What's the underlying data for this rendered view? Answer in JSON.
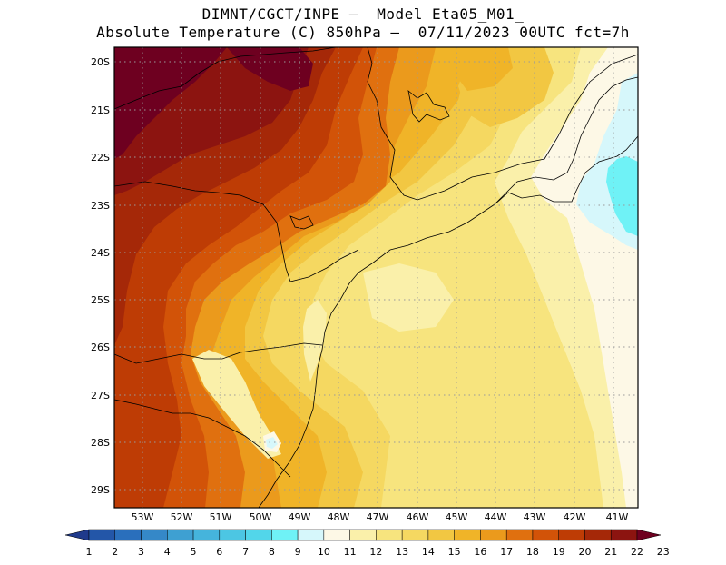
{
  "header": {
    "title_line1": "DIMNT/CGCT/INPE –  Model Eta05_M01_",
    "title_line2": "Absolute Temperature (C) 850hPa –  07/11/2023 00UTC fct=7h"
  },
  "map": {
    "lat_labels": [
      "20S",
      "21S",
      "22S",
      "23S",
      "24S",
      "25S",
      "26S",
      "27S",
      "28S",
      "29S"
    ],
    "lon_labels": [
      "53W",
      "52W",
      "51W",
      "50W",
      "49W",
      "48W",
      "47W",
      "46W",
      "45W",
      "44W",
      "43W",
      "42W",
      "41W"
    ],
    "colors": {
      "c23": "#6e0020",
      "c22": "#8c1410",
      "c21": "#a52808",
      "c20": "#be3c05",
      "c19": "#d25308",
      "c18": "#e0700f",
      "c17": "#eb9a1c",
      "c16": "#f0b428",
      "c15": "#f2c742",
      "c14": "#f5d861",
      "c13": "#f7e47e",
      "c12": "#faf0aa",
      "c11": "#fdf8e6",
      "c10": "#d6f7fb",
      "c9": "#6ff2f6",
      "c8": "#43e1ec",
      "c7": "#2bc6df"
    }
  },
  "colorbar": {
    "labels": [
      "1",
      "2",
      "3",
      "4",
      "5",
      "6",
      "7",
      "8",
      "9",
      "10",
      "11",
      "12",
      "13",
      "14",
      "15",
      "16",
      "17",
      "18",
      "19",
      "20",
      "21",
      "22",
      "23"
    ],
    "colors": [
      "#1f3a8c",
      "#2356a8",
      "#2a6fbc",
      "#3588c8",
      "#3ea0d2",
      "#45b4dc",
      "#4cc6e3",
      "#52d6ea",
      "#6ff2f6",
      "#d6f7fb",
      "#fdf8e6",
      "#faf0aa",
      "#f7e47e",
      "#f5d861",
      "#f2c742",
      "#f0b428",
      "#eb9a1c",
      "#e0700f",
      "#d25308",
      "#be3c05",
      "#a52808",
      "#8c1410",
      "#6e0020"
    ]
  }
}
